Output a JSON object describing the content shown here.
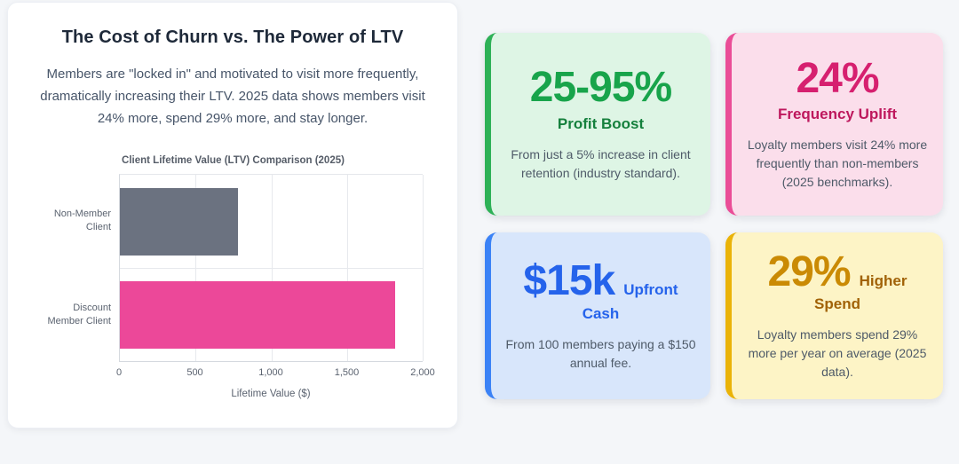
{
  "page": {
    "background": "#f4f6f9"
  },
  "left_card": {
    "title": "The Cost of Churn vs. The Power of LTV",
    "description": "Members are \"locked in\" and motivated to visit more frequently, dramatically increasing their LTV. 2025 data shows members visit 24% more, spend 29% more, and stay longer."
  },
  "chart_data": {
    "type": "bar",
    "orientation": "horizontal",
    "title": "Client Lifetime Value (LTV) Comparison (2025)",
    "categories": [
      "Non-Member Client",
      "Discount Member Client"
    ],
    "values": [
      780,
      1820
    ],
    "bar_colors": [
      "#6b7280",
      "#ec4899"
    ],
    "xlabel": "Lifetime Value ($)",
    "xlim": [
      0,
      2000
    ],
    "xticks": [
      0,
      500,
      1000,
      1500,
      2000
    ],
    "xtick_labels": [
      "0",
      "500",
      "1,000",
      "1,500",
      "2,000"
    ],
    "grid": true,
    "legend": "none"
  },
  "stat_cards": [
    {
      "id": "profit-boost",
      "layout": "stacked",
      "value": "25-95%",
      "label": "Profit Boost",
      "description": "From just a 5% increase in client retention (industry standard).",
      "accent": "#2eb157",
      "bg": "#def5e5",
      "value_color": "#18a44b",
      "label_color": "#15803d"
    },
    {
      "id": "frequency-uplift",
      "layout": "stacked",
      "value": "24%",
      "label": "Frequency Uplift",
      "description": "Loyalty members visit 24% more frequently than non-members (2025 benchmarks).",
      "accent": "#ea4d97",
      "bg": "#fbdeeb",
      "value_color": "#d6206f",
      "label_color": "#be185d"
    },
    {
      "id": "upfront-cash",
      "layout": "inline",
      "value": "$15k",
      "label": "Upfront Cash",
      "description": "From 100 members paying a $150 annual fee.",
      "accent": "#3b82f6",
      "bg": "#d8e6fb",
      "value_color": "#2563eb",
      "label_color": "#2563eb"
    },
    {
      "id": "higher-spend",
      "layout": "inline",
      "value": "29%",
      "label": "Higher Spend",
      "description": "Loyalty members spend 29% more per year on average (2025 data).",
      "accent": "#eab308",
      "bg": "#fdf4c6",
      "value_color": "#ca8a04",
      "label_color": "#a16207"
    }
  ]
}
